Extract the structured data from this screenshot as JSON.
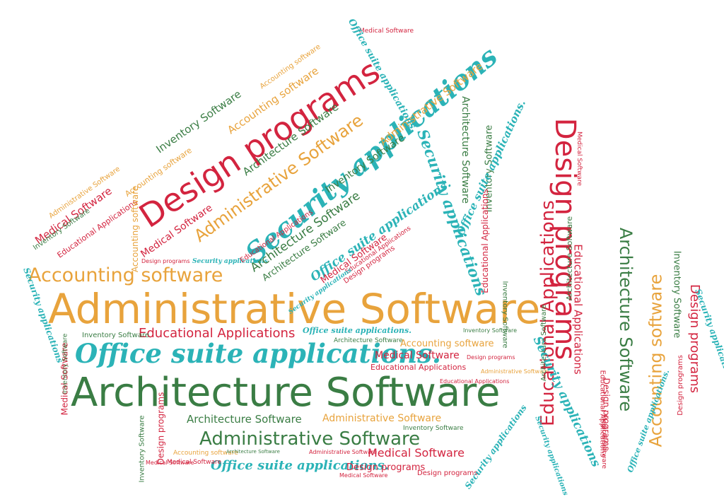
{
  "colors": {
    "green": "#3a7d44",
    "orange": "#e8a33c",
    "red": "#d3243f",
    "teal": "#2bb3b7"
  },
  "terms": {
    "administrative": "Administrative Software",
    "architecture": "Architecture Software",
    "office": "Office suite applications.",
    "design": "Design programs",
    "educational": "Educational Applications",
    "security": "Security applications",
    "accounting": "Accounting software",
    "medical": "Medical Software",
    "inventory": "Inventory Software"
  }
}
